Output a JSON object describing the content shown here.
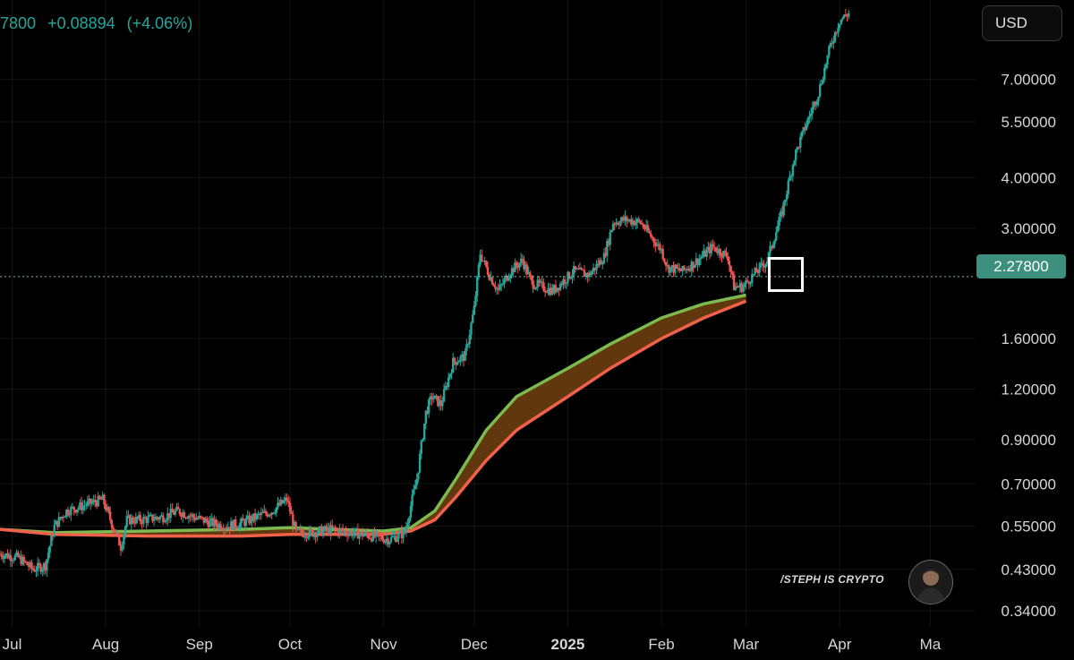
{
  "header": {
    "last_price_partial": "7800",
    "change": "+0.08894",
    "change_percent": "(+4.06%)"
  },
  "toolbar": {
    "currency_label": "USD"
  },
  "current_price": "2.27800",
  "watermark": "/STEPH IS CRYPTO",
  "colors": {
    "up": "#26a69a",
    "down": "#ef5350",
    "ema_fast": "#7cba4f",
    "ema_slow": "#f0604b",
    "ribbon_fill": "#6b3d0e",
    "price_tag": "#3d8f7e"
  },
  "chart_data": {
    "type": "candlestick",
    "scale": "log",
    "ylim": [
      0.31,
      11
    ],
    "y_ticks": [
      "7.00000",
      "5.50000",
      "4.00000",
      "3.00000",
      "2.27800",
      "1.60000",
      "1.20000",
      "0.90000",
      "0.70000",
      "0.55000",
      "0.43000",
      "0.34000"
    ],
    "y_tick_values": [
      7.0,
      5.5,
      4.0,
      3.0,
      1.6,
      1.2,
      0.9,
      0.7,
      0.55,
      0.43,
      0.34
    ],
    "x_ticks": [
      "Jul",
      "Aug",
      "Sep",
      "Oct",
      "Nov",
      "Dec",
      "2025",
      "Feb",
      "Mar",
      "Apr",
      "Ma"
    ],
    "x_tick_dates": [
      "2024-07-01",
      "2024-08-01",
      "2024-09-01",
      "2024-10-01",
      "2024-11-01",
      "2024-12-01",
      "2025-01-01",
      "2025-02-01",
      "2025-03-01",
      "2025-04-01",
      "2025-05-01"
    ],
    "x_range": [
      "2024-06-27",
      "2025-05-16"
    ],
    "price_line": 2.278,
    "price_path": [
      [
        "2024-06-27",
        0.47
      ],
      [
        "2024-07-03",
        0.46
      ],
      [
        "2024-07-08",
        0.43
      ],
      [
        "2024-07-12",
        0.44
      ],
      [
        "2024-07-15",
        0.55
      ],
      [
        "2024-07-19",
        0.6
      ],
      [
        "2024-07-25",
        0.62
      ],
      [
        "2024-07-31",
        0.64
      ],
      [
        "2024-08-03",
        0.56
      ],
      [
        "2024-08-06",
        0.49
      ],
      [
        "2024-08-08",
        0.57
      ],
      [
        "2024-08-13",
        0.57
      ],
      [
        "2024-08-20",
        0.58
      ],
      [
        "2024-08-25",
        0.6
      ],
      [
        "2024-08-30",
        0.58
      ],
      [
        "2024-09-05",
        0.56
      ],
      [
        "2024-09-10",
        0.55
      ],
      [
        "2024-09-15",
        0.56
      ],
      [
        "2024-09-20",
        0.58
      ],
      [
        "2024-09-25",
        0.6
      ],
      [
        "2024-09-30",
        0.64
      ],
      [
        "2024-10-03",
        0.53
      ],
      [
        "2024-10-08",
        0.53
      ],
      [
        "2024-10-15",
        0.54
      ],
      [
        "2024-10-22",
        0.53
      ],
      [
        "2024-10-28",
        0.52
      ],
      [
        "2024-11-03",
        0.51
      ],
      [
        "2024-11-08",
        0.53
      ],
      [
        "2024-11-12",
        0.72
      ],
      [
        "2024-11-15",
        1.05
      ],
      [
        "2024-11-17",
        1.15
      ],
      [
        "2024-11-20",
        1.1
      ],
      [
        "2024-11-24",
        1.4
      ],
      [
        "2024-11-28",
        1.45
      ],
      [
        "2024-12-01",
        1.9
      ],
      [
        "2024-12-03",
        2.6
      ],
      [
        "2024-12-06",
        2.3
      ],
      [
        "2024-12-09",
        2.1
      ],
      [
        "2024-12-13",
        2.35
      ],
      [
        "2024-12-17",
        2.5
      ],
      [
        "2024-12-20",
        2.2
      ],
      [
        "2024-12-27",
        2.1
      ],
      [
        "2025-01-03",
        2.35
      ],
      [
        "2025-01-08",
        2.3
      ],
      [
        "2025-01-13",
        2.55
      ],
      [
        "2025-01-16",
        3.1
      ],
      [
        "2025-01-20",
        3.15
      ],
      [
        "2025-01-25",
        3.1
      ],
      [
        "2025-01-28",
        2.9
      ],
      [
        "2025-02-01",
        2.65
      ],
      [
        "2025-02-03",
        2.4
      ],
      [
        "2025-02-08",
        2.35
      ],
      [
        "2025-02-13",
        2.5
      ],
      [
        "2025-02-18",
        2.7
      ],
      [
        "2025-02-23",
        2.55
      ],
      [
        "2025-02-25",
        2.15
      ],
      [
        "2025-02-28",
        2.15
      ],
      [
        "2025-03-03",
        2.28
      ],
      [
        "2025-03-08",
        2.5
      ],
      [
        "2025-03-13",
        3.3
      ],
      [
        "2025-03-17",
        4.5
      ],
      [
        "2025-03-20",
        5.2
      ],
      [
        "2025-03-25",
        6.5
      ],
      [
        "2025-03-29",
        8.5
      ],
      [
        "2025-04-01",
        9.8
      ],
      [
        "2025-04-04",
        10.2
      ]
    ],
    "series": [
      {
        "color": "#7cba4f",
        "points": [
          [
            "2024-06-27",
            0.54
          ],
          [
            "2024-07-15",
            0.53
          ],
          [
            "2024-08-15",
            0.535
          ],
          [
            "2024-09-15",
            0.54
          ],
          [
            "2024-10-01",
            0.545
          ],
          [
            "2024-10-15",
            0.54
          ],
          [
            "2024-11-01",
            0.535
          ],
          [
            "2024-11-10",
            0.545
          ],
          [
            "2024-11-18",
            0.6
          ],
          [
            "2024-11-25",
            0.72
          ],
          [
            "2024-12-05",
            0.95
          ],
          [
            "2024-12-15",
            1.15
          ],
          [
            "2025-01-01",
            1.35
          ],
          [
            "2025-01-15",
            1.55
          ],
          [
            "2025-02-01",
            1.8
          ],
          [
            "2025-02-15",
            1.95
          ],
          [
            "2025-03-01",
            2.05
          ]
        ]
      },
      {
        "color": "#f0604b",
        "points": [
          [
            "2024-06-27",
            0.54
          ],
          [
            "2024-07-15",
            0.525
          ],
          [
            "2024-08-15",
            0.52
          ],
          [
            "2024-09-15",
            0.52
          ],
          [
            "2024-10-01",
            0.525
          ],
          [
            "2024-10-15",
            0.525
          ],
          [
            "2024-11-01",
            0.525
          ],
          [
            "2024-11-10",
            0.535
          ],
          [
            "2024-11-18",
            0.57
          ],
          [
            "2024-11-25",
            0.65
          ],
          [
            "2024-12-05",
            0.8
          ],
          [
            "2024-12-15",
            0.95
          ],
          [
            "2025-01-01",
            1.15
          ],
          [
            "2025-01-15",
            1.35
          ],
          [
            "2025-02-01",
            1.6
          ],
          [
            "2025-02-15",
            1.8
          ],
          [
            "2025-03-01",
            1.98
          ]
        ]
      }
    ]
  }
}
